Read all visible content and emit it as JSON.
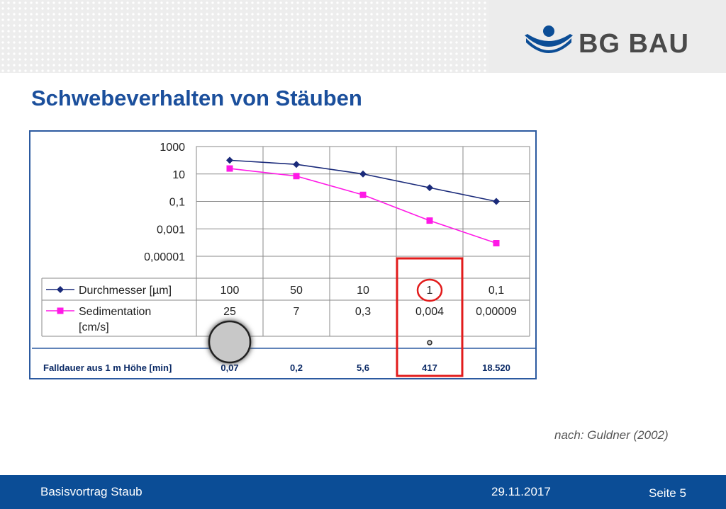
{
  "header": {
    "brand": "BG BAU"
  },
  "title": "Schwebeverhalten von Stäuben",
  "chart_data": {
    "type": "line",
    "y_scale": "log",
    "ylim": [
      1e-05,
      1000
    ],
    "y_ticks": [
      "1000",
      "10",
      "0,1",
      "0,001",
      "0,00001"
    ],
    "y_tick_values": [
      1000,
      10,
      0.1,
      0.001,
      1e-05
    ],
    "categories": [
      "1",
      "2",
      "3",
      "4",
      "5"
    ],
    "grid": true,
    "series": [
      {
        "name": "Durchmesser [µm]",
        "color": "#1a2a7a",
        "marker": "diamond",
        "values": [
          100,
          50,
          10,
          1,
          0.1
        ],
        "labels": [
          "100",
          "50",
          "10",
          "1",
          "0,1"
        ]
      },
      {
        "name": "Sedimentation [cm/s]",
        "color": "#ff19e6",
        "marker": "square",
        "values": [
          25,
          7,
          0.3,
          0.004,
          9e-05
        ],
        "labels": [
          "25",
          "7",
          "0,3",
          "0,004",
          "0,00009"
        ]
      }
    ],
    "fall_row": {
      "label": "Falldauer aus 1 m Höhe [min]",
      "values": [
        "0,07",
        "0,2",
        "5,6",
        "417",
        "18.520"
      ]
    },
    "highlight_column": 3
  },
  "source": "nach: Guldner (2002)",
  "footer": {
    "left": "Basisvortrag Staub",
    "date": "29.11.2017",
    "page": "Seite 5"
  }
}
